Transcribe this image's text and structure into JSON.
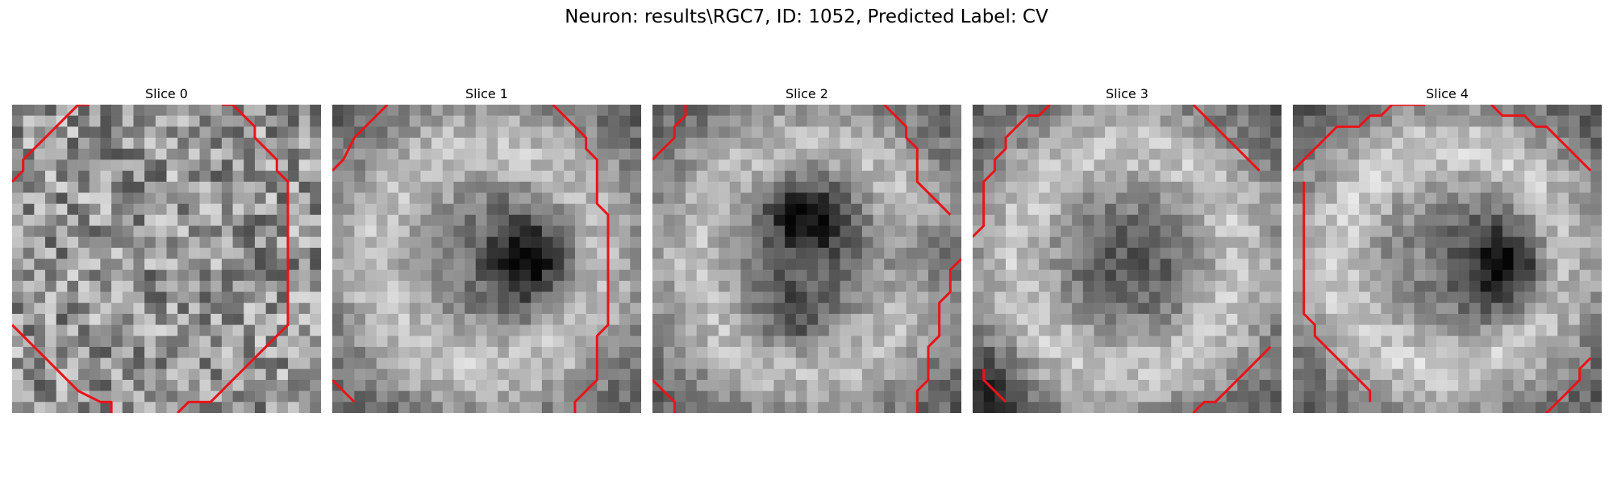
{
  "figure": {
    "title": "Neuron: results\\RGC7, ID: 1052, Predicted Label: CV",
    "panels": [
      {
        "title": "Slice 0"
      },
      {
        "title": "Slice 1"
      },
      {
        "title": "Slice 2"
      },
      {
        "title": "Slice 3"
      },
      {
        "title": "Slice 4"
      }
    ],
    "contour_color": "#e8141a",
    "colormap": "gray"
  }
}
